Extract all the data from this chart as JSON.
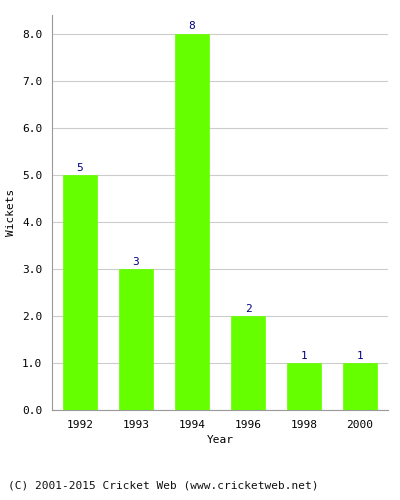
{
  "years": [
    "1992",
    "1993",
    "1994",
    "1996",
    "1998",
    "2000"
  ],
  "values": [
    5,
    3,
    8,
    2,
    1,
    1
  ],
  "bar_color": "#66ff00",
  "label_color": "#000080",
  "ylabel": "Wickets",
  "xlabel": "Year",
  "ylim": [
    0,
    8.4
  ],
  "yticks": [
    0.0,
    1.0,
    2.0,
    3.0,
    4.0,
    5.0,
    6.0,
    7.0,
    8.0
  ],
  "footer": "(C) 2001-2015 Cricket Web (www.cricketweb.net)",
  "background_color": "#ffffff",
  "grid_color": "#cccccc",
  "label_fontsize": 8,
  "axis_fontsize": 8,
  "footer_fontsize": 8,
  "bar_width": 0.6
}
